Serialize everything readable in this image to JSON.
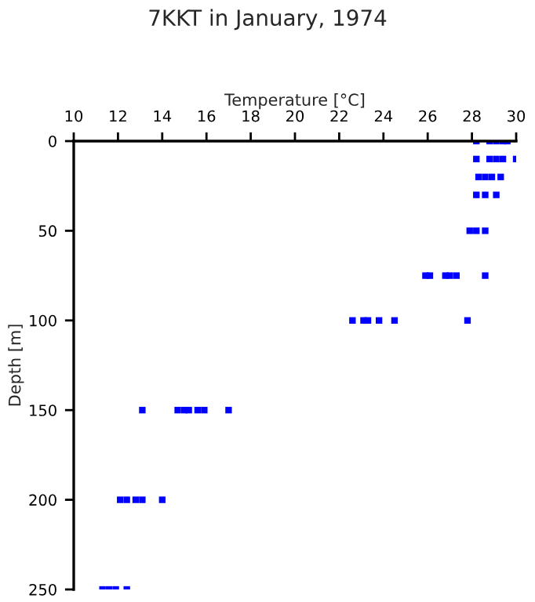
{
  "chart_data": {
    "type": "scatter",
    "title": "7KKT in January, 1974",
    "xlabel": "Temperature [°C]",
    "ylabel": "Depth [m]",
    "x": [
      28.2,
      28.8,
      29.1,
      29.4,
      29.6,
      28.2,
      28.8,
      29.1,
      29.4,
      30.0,
      28.3,
      28.6,
      28.9,
      29.3,
      28.2,
      28.6,
      29.1,
      27.9,
      28.2,
      28.6,
      25.9,
      26.1,
      26.8,
      27.0,
      27.3,
      28.6,
      22.6,
      23.1,
      23.3,
      23.8,
      24.5,
      27.8,
      13.1,
      14.7,
      15.0,
      15.2,
      15.6,
      15.9,
      17.0,
      12.1,
      12.4,
      12.8,
      13.1,
      14.0,
      11.3,
      11.6,
      11.9,
      12.4
    ],
    "values": [
      0,
      0,
      0,
      0,
      0,
      10,
      10,
      10,
      10,
      10,
      20,
      20,
      20,
      20,
      30,
      30,
      30,
      50,
      50,
      50,
      75,
      75,
      75,
      75,
      75,
      75,
      100,
      100,
      100,
      100,
      100,
      100,
      150,
      150,
      150,
      150,
      150,
      150,
      150,
      200,
      200,
      200,
      200,
      200,
      250,
      250,
      250,
      250
    ],
    "color": "#0000ff",
    "marker": "square",
    "xlim": [
      10,
      30
    ],
    "xticks": [
      10,
      12,
      14,
      16,
      18,
      20,
      22,
      24,
      26,
      28,
      30
    ],
    "ylim": [
      250,
      0
    ],
    "yticks": [
      0,
      50,
      100,
      150,
      200,
      250
    ],
    "grid": false
  }
}
